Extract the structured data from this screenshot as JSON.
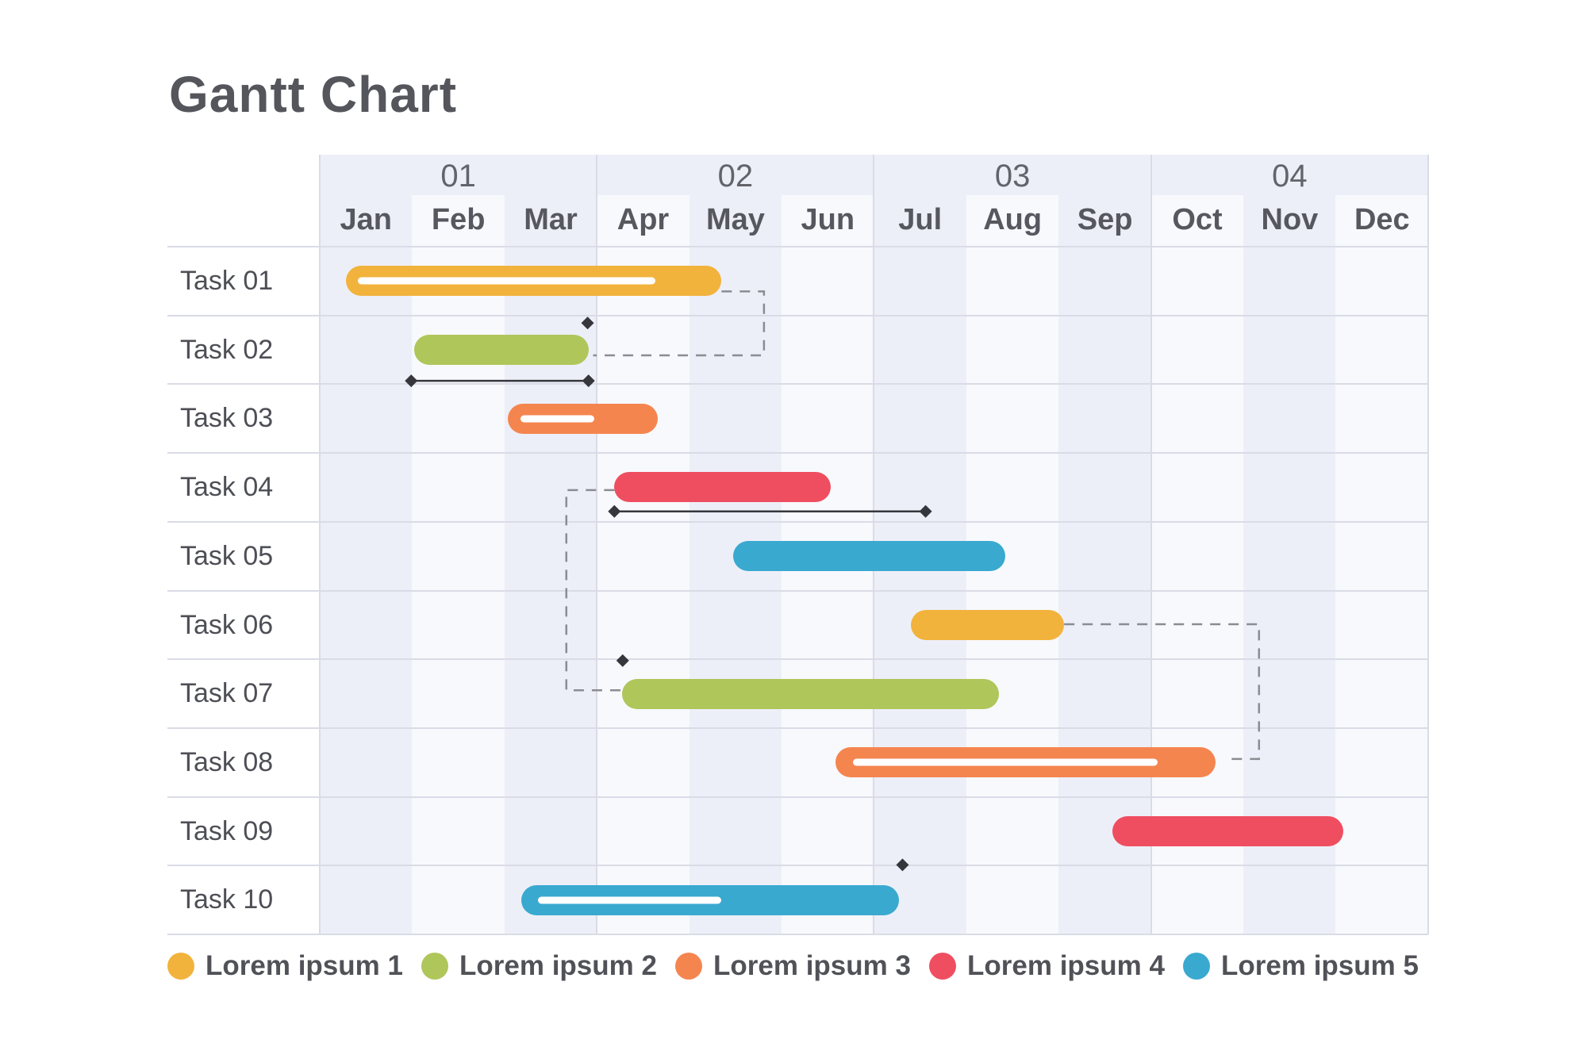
{
  "title": "Gantt Chart",
  "theme": {
    "background": "#ffffff",
    "timeline_bg": "#f8f9fd",
    "stripe": "#edeff8",
    "grid_line": "#d9dce6",
    "text": "#4e4f56",
    "muted_text": "#63646b",
    "connector": "#8b8c92",
    "milestone": "#36373c",
    "yellow": "#F2B33C",
    "green": "#AFC65A",
    "orange": "#F5854F",
    "red": "#EF4E60",
    "blue": "#3AA9D0"
  },
  "legend": [
    {
      "label": "Lorem ipsum 1",
      "color": "#F2B33C"
    },
    {
      "label": "Lorem ipsum 2",
      "color": "#AFC65A"
    },
    {
      "label": "Lorem ipsum 3",
      "color": "#F5854F"
    },
    {
      "label": "Lorem ipsum 4",
      "color": "#EF4E60"
    },
    {
      "label": "Lorem ipsum 5",
      "color": "#3AA9D0"
    }
  ],
  "chart_data": {
    "type": "gantt",
    "title": "Gantt Chart",
    "x_axis": {
      "quarters": [
        "01",
        "02",
        "03",
        "04"
      ],
      "months": [
        "Jan",
        "Feb",
        "Mar",
        "Apr",
        "May",
        "Jun",
        "Jul",
        "Aug",
        "Sep",
        "Oct",
        "Nov",
        "Dec"
      ],
      "range_months": [
        0,
        12
      ]
    },
    "tasks": [
      {
        "label": "Task 01",
        "color": "#F2B33C",
        "start": 0.28,
        "end": 4.35,
        "progress": {
          "start": 0.41,
          "end": 3.63
        }
      },
      {
        "label": "Task 02",
        "color": "#AFC65A",
        "start": 1.02,
        "end": 2.91
      },
      {
        "label": "Task 03",
        "color": "#F5854F",
        "start": 2.04,
        "end": 3.66,
        "progress": {
          "start": 2.17,
          "end": 2.97
        }
      },
      {
        "label": "Task 04",
        "color": "#EF4E60",
        "start": 3.19,
        "end": 5.53
      },
      {
        "label": "Task 05",
        "color": "#3AA9D0",
        "start": 4.48,
        "end": 7.42
      },
      {
        "label": "Task 06",
        "color": "#F2B33C",
        "start": 6.4,
        "end": 8.06
      },
      {
        "label": "Task 07",
        "color": "#AFC65A",
        "start": 3.27,
        "end": 7.35
      },
      {
        "label": "Task 08",
        "color": "#F5854F",
        "start": 5.58,
        "end": 9.7,
        "progress": {
          "start": 5.77,
          "end": 9.07
        }
      },
      {
        "label": "Task 09",
        "color": "#EF4E60",
        "start": 8.58,
        "end": 11.08
      },
      {
        "label": "Task 10",
        "color": "#3AA9D0",
        "start": 2.18,
        "end": 6.27,
        "progress": {
          "start": 2.36,
          "end": 4.35
        }
      }
    ],
    "baselines": [
      {
        "task": "Task 02",
        "start": 0.99,
        "end": 2.91,
        "y": 1.95
      },
      {
        "task": "Task 04",
        "start": 3.19,
        "end": 6.56,
        "y": 3.85
      }
    ],
    "milestones": [
      {
        "month": 2.9,
        "y": 1.11
      },
      {
        "month": 3.28,
        "y": 6.02
      },
      {
        "month": 6.31,
        "y": 8.99
      }
    ],
    "connectors": [
      {
        "x": [
          4.35,
          4.81,
          4.81,
          2.96
        ],
        "y": [
          0.65,
          0.65,
          1.58,
          1.58
        ]
      },
      {
        "x": [
          3.19,
          2.67,
          2.67,
          3.27
        ],
        "y": [
          3.54,
          3.54,
          6.45,
          6.45
        ]
      },
      {
        "x": [
          8.06,
          10.17,
          10.17,
          9.81
        ],
        "y": [
          5.49,
          5.49,
          7.45,
          7.45
        ]
      }
    ]
  }
}
